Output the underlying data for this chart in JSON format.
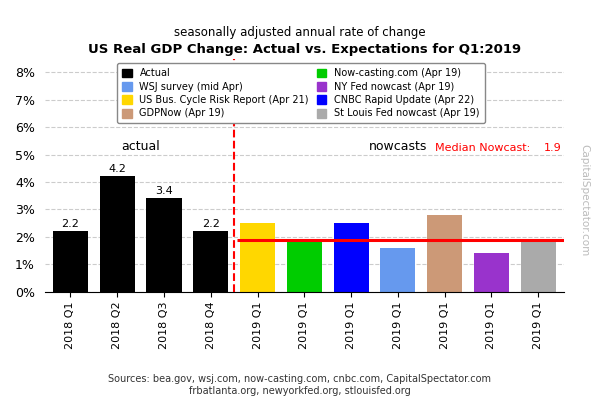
{
  "title": "US Real GDP Change: Actual vs. Expectations for Q1:2019",
  "subtitle": "seasonally adjusted annual rate of change",
  "bars": [
    {
      "label": "2018 Q1",
      "value": 2.2,
      "color": "#000000",
      "type": "actual"
    },
    {
      "label": "2018 Q2",
      "value": 4.2,
      "color": "#000000",
      "type": "actual"
    },
    {
      "label": "2018 Q3",
      "value": 3.4,
      "color": "#000000",
      "type": "actual"
    },
    {
      "label": "2018 Q4",
      "value": 2.2,
      "color": "#000000",
      "type": "actual"
    },
    {
      "label": "2019 Q1",
      "value": 2.5,
      "color": "#FFD700",
      "type": "nowcast"
    },
    {
      "label": "2019 Q1",
      "value": 1.9,
      "color": "#00CC00",
      "type": "nowcast"
    },
    {
      "label": "2019 Q1",
      "value": 2.5,
      "color": "#0000FF",
      "type": "nowcast"
    },
    {
      "label": "2019 Q1",
      "value": 1.6,
      "color": "#6699EE",
      "type": "nowcast"
    },
    {
      "label": "2019 Q1",
      "value": 2.8,
      "color": "#CC9977",
      "type": "nowcast"
    },
    {
      "label": "2019 Q1",
      "value": 1.4,
      "color": "#9933CC",
      "type": "nowcast"
    },
    {
      "label": "2019 Q1",
      "value": 1.9,
      "color": "#AAAAAA",
      "type": "nowcast"
    }
  ],
  "median_nowcast": 1.9,
  "median_color": "#FF0000",
  "ylim_max": 8.5,
  "yticks": [
    0,
    1,
    2,
    3,
    4,
    5,
    6,
    7,
    8
  ],
  "ytick_labels": [
    "0%",
    "1%",
    "2%",
    "3%",
    "4%",
    "5%",
    "6%",
    "7%",
    "8%"
  ],
  "watermark": "CapitalSpectator.com",
  "sources_line1": "Sources: bea.gov, wsj.com, now-casting.com, cnbc.com, CapitalSpectator.com",
  "sources_line2": "frbatlanta.org, newyorkfed.org, stlouisfed.org",
  "legend_entries": [
    {
      "label": "Actual",
      "color": "#000000"
    },
    {
      "label": "WSJ survey (mid Apr)",
      "color": "#6699EE"
    },
    {
      "label": "US Bus. Cycle Risk Report (Apr 21)",
      "color": "#FFD700"
    },
    {
      "label": "GDPNow (Apr 19)",
      "color": "#CC9977"
    },
    {
      "label": "Now-casting.com (Apr 19)",
      "color": "#00CC00"
    },
    {
      "label": "NY Fed nowcast (Apr 19)",
      "color": "#9933CC"
    },
    {
      "label": "CNBC Rapid Update (Apr 22)",
      "color": "#0000FF"
    },
    {
      "label": "St Louis Fed nowcast (Apr 19)",
      "color": "#AAAAAA"
    }
  ]
}
